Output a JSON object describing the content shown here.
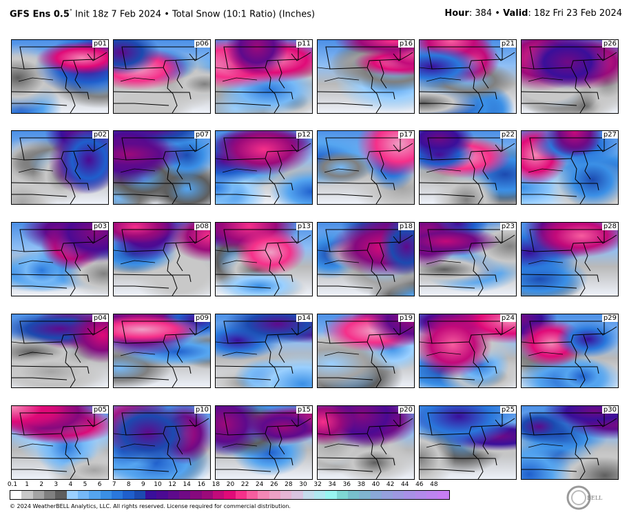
{
  "header": {
    "model": "GFS Ens 0.5",
    "degree": "°",
    "init": " Init 18z 7 Feb 2024 • Total Snow (10:1 Ratio) (Inches)",
    "hour_label": "Hour",
    "hour": ": 384 • ",
    "valid_label": "Valid",
    "valid": ": 18z Fri 23 Feb 2024"
  },
  "members": [
    "p01",
    "p02",
    "p03",
    "p04",
    "p05",
    "p06",
    "p07",
    "p08",
    "p09",
    "p10",
    "p11",
    "p12",
    "p13",
    "p14",
    "p15",
    "p16",
    "p17",
    "p18",
    "p19",
    "p20",
    "p21",
    "p22",
    "p23",
    "p24",
    "p25",
    "p26",
    "p27",
    "p28",
    "p29",
    "p30"
  ],
  "colorbar": {
    "labels": [
      "0.1",
      "1",
      "2",
      "3",
      "4",
      "5",
      "6",
      "7",
      "8",
      "9",
      "10",
      "12",
      "14",
      "16",
      "18",
      "20",
      "22",
      "24",
      "26",
      "28",
      "30",
      "32",
      "34",
      "36",
      "38",
      "40",
      "42",
      "44",
      "46",
      "48"
    ],
    "colors": [
      "#ffffff",
      "#c8c8c8",
      "#a4a4a4",
      "#808080",
      "#5e5e5e",
      "#9bd0ff",
      "#76b9f7",
      "#55a5f0",
      "#3a8fe6",
      "#2a78dc",
      "#1f5fcc",
      "#1c4ab0",
      "#3a0f9a",
      "#4b0a93",
      "#5e0a8c",
      "#700a85",
      "#86097e",
      "#9c0a7a",
      "#c20a7a",
      "#e00a78",
      "#f5308a",
      "#f75d9f",
      "#f487b5",
      "#eea0c5",
      "#e6b5d4",
      "#d9c4e0",
      "#c4dcec",
      "#b0e8f0",
      "#98f5f0",
      "#7fd8d4",
      "#78c0cc",
      "#80b4d0",
      "#8aa8d8",
      "#95a0dc",
      "#9e98e0",
      "#a890e6",
      "#b28aea",
      "#bc84ee",
      "#c67ef2"
    ]
  },
  "copyright": "© 2024 WeatherBELL Analytics, LLC. All rights reserved. License required for commercial distribution.",
  "logo_text": "WeatherBELL"
}
